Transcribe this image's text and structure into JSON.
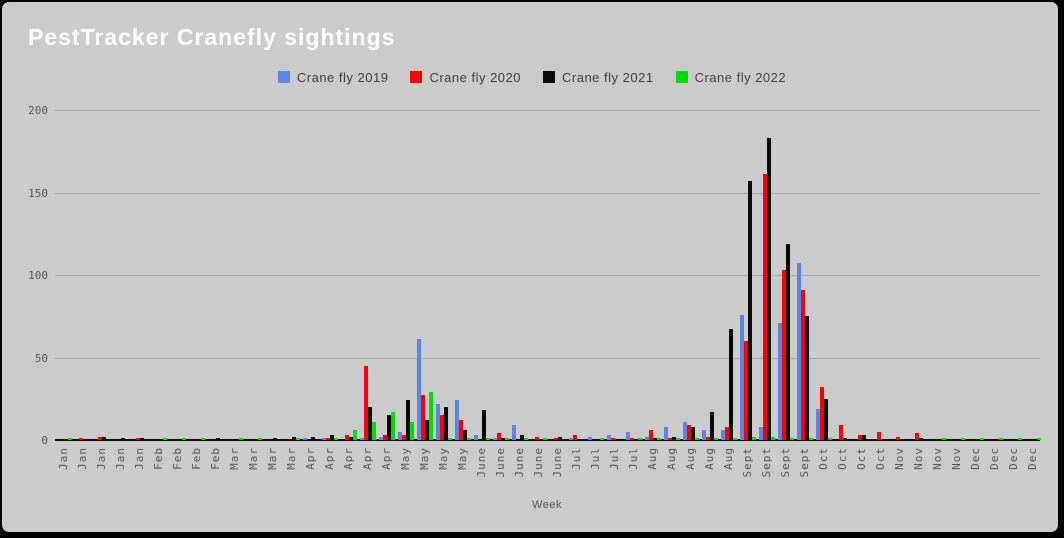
{
  "page": {
    "title": "PestTracker Cranefly sightings"
  },
  "chart_data": {
    "type": "bar",
    "title": "PestTracker Cranefly sightings",
    "xlabel": "Week",
    "ylabel": "",
    "ylim": [
      0,
      200
    ],
    "yticks": [
      0,
      50,
      100,
      150,
      200
    ],
    "grid": true,
    "legend_position": "top",
    "categories": [
      "Jan",
      "Jan",
      "Jan",
      "Jan",
      "Jan",
      "Feb",
      "Feb",
      "Feb",
      "Feb",
      "Mar",
      "Mar",
      "Mar",
      "Mar",
      "Apr",
      "Apr",
      "Apr",
      "Apr",
      "Apr",
      "May",
      "May",
      "May",
      "May",
      "June",
      "June",
      "June",
      "June",
      "June",
      "Jul",
      "Jul",
      "Jul",
      "Jul",
      "Aug",
      "Aug",
      "Aug",
      "Aug",
      "Aug",
      "Sept",
      "Sept",
      "Sept",
      "Sept",
      "Oct",
      "Oct",
      "Oct",
      "Oct",
      "Nov",
      "Nov",
      "Nov",
      "Nov",
      "Dec",
      "Dec",
      "Dec",
      "Dec"
    ],
    "series": [
      {
        "name": "Crane fly 2019",
        "color": "#5b84e6",
        "values": [
          0,
          0,
          0,
          0,
          0,
          0,
          0,
          0,
          0,
          0,
          0,
          0,
          0,
          1,
          1,
          0,
          1,
          2,
          5,
          61,
          22,
          24,
          3,
          1,
          9,
          0,
          0,
          1,
          2,
          3,
          5,
          2,
          8,
          11,
          6,
          6,
          76,
          8,
          71,
          107,
          19,
          0,
          0,
          0,
          0,
          0,
          0,
          0,
          0,
          0,
          0,
          0
        ]
      },
      {
        "name": "Crane fly 2020",
        "color": "#fe0000",
        "values": [
          0,
          1,
          2,
          0,
          1,
          0,
          0,
          0,
          0,
          0,
          0,
          0,
          0,
          0,
          1,
          3,
          45,
          3,
          3,
          27,
          15,
          12,
          0,
          4,
          0,
          2,
          1,
          3,
          0,
          1,
          1,
          6,
          1,
          9,
          2,
          8,
          60,
          161,
          103,
          91,
          32,
          9,
          3,
          5,
          2,
          4,
          0,
          0,
          0,
          0,
          0,
          0
        ]
      },
      {
        "name": "Crane fly 2021",
        "color": "#0a0a0a",
        "values": [
          0,
          0,
          2,
          1,
          1,
          0,
          0,
          0,
          1,
          0,
          0,
          1,
          2,
          2,
          3,
          2,
          20,
          15,
          24,
          12,
          20,
          6,
          18,
          1,
          3,
          0,
          2,
          0,
          0,
          0,
          0,
          1,
          2,
          8,
          17,
          67,
          157,
          183,
          119,
          75,
          25,
          1,
          3,
          0,
          0,
          1,
          0,
          0,
          0,
          0,
          0,
          0
        ]
      },
      {
        "name": "Crane fly 2022",
        "color": "#00dd00",
        "values": [
          1,
          0,
          0,
          0,
          0,
          1,
          1,
          1,
          0,
          1,
          1,
          0,
          1,
          0,
          1,
          6,
          11,
          17,
          11,
          29,
          1,
          1,
          1,
          1,
          1,
          1,
          0,
          0,
          1,
          0,
          1,
          1,
          1,
          1,
          1,
          1,
          2,
          2,
          1,
          1,
          1,
          0,
          0,
          0,
          0,
          0,
          1,
          1,
          1,
          1,
          1,
          1
        ]
      }
    ]
  },
  "colors": {
    "background": "#cbcbcb",
    "frame": "#000000",
    "grid": "#a6a6a6",
    "axis": "#111111",
    "tick_text": "#555555",
    "title_text": "#ffffff",
    "legend_text": "#3d3d3d"
  }
}
